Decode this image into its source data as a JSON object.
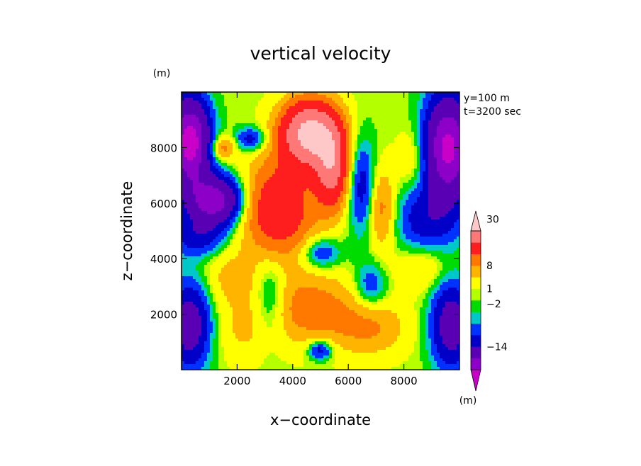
{
  "chart_data": {
    "type": "heatmap",
    "title": "vertical velocity",
    "xlabel": "x−coordinate",
    "ylabel": "z−coordinate",
    "yunit": "(m)",
    "colorbar_unit": "(m)",
    "annotations": [
      "y=100 m",
      "t=3200 sec"
    ],
    "xlim": [
      0,
      10000
    ],
    "ylim": [
      0,
      10000
    ],
    "xticks": [
      2000,
      4000,
      6000,
      8000
    ],
    "yticks": [
      2000,
      4000,
      6000,
      8000
    ],
    "colorbar_labels": [
      {
        "label": "30",
        "level": 13
      },
      {
        "label": "8",
        "level": 9
      },
      {
        "label": "1",
        "level": 7
      },
      {
        "label": "−2",
        "level": 5.7
      },
      {
        "label": "−14",
        "level": 2
      }
    ],
    "colorbar_colors": [
      "#c800c8",
      "#8c00c8",
      "#5a00b4",
      "#0000c8",
      "#0032ff",
      "#00c8c8",
      "#00dc00",
      "#b4ff00",
      "#ffff00",
      "#ffb400",
      "#ff7800",
      "#ff1e1e",
      "#ff7878",
      "#ffc8c8"
    ],
    "field_structure": "gridded vertical velocity on x-z slice; values read from contour colors (approx.)",
    "grid_x": [
      0,
      500,
      1000,
      1500,
      2000,
      2500,
      3000,
      3500,
      4000,
      4500,
      5000,
      5500,
      6000,
      6500,
      7000,
      7500,
      8000,
      8500,
      9000,
      9500,
      10000
    ],
    "grid_z": [
      0,
      500,
      1000,
      1500,
      2000,
      2500,
      3000,
      3500,
      4000,
      4500,
      5000,
      5500,
      6000,
      6500,
      7000,
      7500,
      8000,
      8500,
      9000,
      9500,
      10000
    ],
    "blobs": [
      {
        "x": 300,
        "z": 8200,
        "amp": -28,
        "sx": 500,
        "sz": 1100
      },
      {
        "x": 1200,
        "z": 6100,
        "amp": -22,
        "sx": 700,
        "sz": 600
      },
      {
        "x": 600,
        "z": 4800,
        "amp": -8,
        "sx": 700,
        "sz": 500
      },
      {
        "x": 300,
        "z": 1600,
        "amp": -14,
        "sx": 500,
        "sz": 1100
      },
      {
        "x": 9700,
        "z": 1600,
        "amp": -14,
        "sx": 500,
        "sz": 1100
      },
      {
        "x": 9600,
        "z": 8000,
        "amp": -26,
        "sx": 600,
        "sz": 1300
      },
      {
        "x": 8800,
        "z": 5400,
        "amp": -8,
        "sx": 800,
        "sz": 900
      },
      {
        "x": 2500,
        "z": 8300,
        "amp": -8,
        "sx": 400,
        "sz": 300
      },
      {
        "x": 6500,
        "z": 6600,
        "amp": -8,
        "sx": 350,
        "sz": 1200
      },
      {
        "x": 5000,
        "z": 4200,
        "amp": -7,
        "sx": 500,
        "sz": 400
      },
      {
        "x": 3200,
        "z": 2600,
        "amp": -6,
        "sx": 400,
        "sz": 1000
      },
      {
        "x": 6800,
        "z": 3000,
        "amp": -6,
        "sx": 400,
        "sz": 600
      },
      {
        "x": 5000,
        "z": 700,
        "amp": -9,
        "sx": 300,
        "sz": 250
      },
      {
        "x": 4600,
        "z": 8500,
        "amp": 32,
        "sx": 700,
        "sz": 800
      },
      {
        "x": 5400,
        "z": 7300,
        "amp": 22,
        "sx": 400,
        "sz": 1000
      },
      {
        "x": 3500,
        "z": 5800,
        "amp": 16,
        "sx": 900,
        "sz": 1200
      },
      {
        "x": 7200,
        "z": 5800,
        "amp": 8,
        "sx": 350,
        "sz": 1000
      },
      {
        "x": 4600,
        "z": 2200,
        "amp": 8,
        "sx": 1200,
        "sz": 900
      },
      {
        "x": 6800,
        "z": 1500,
        "amp": 6,
        "sx": 900,
        "sz": 700
      },
      {
        "x": 1500,
        "z": 8000,
        "amp": 8,
        "sx": 300,
        "sz": 300
      },
      {
        "x": 8400,
        "z": 7600,
        "amp": 4,
        "sx": 400,
        "sz": 800
      },
      {
        "x": 8700,
        "z": 3700,
        "amp": 4,
        "sx": 700,
        "sz": 600
      },
      {
        "x": 1800,
        "z": 3300,
        "amp": 4,
        "sx": 700,
        "sz": 700
      },
      {
        "x": 2200,
        "z": 1400,
        "amp": 3,
        "sx": 600,
        "sz": 800
      }
    ]
  }
}
